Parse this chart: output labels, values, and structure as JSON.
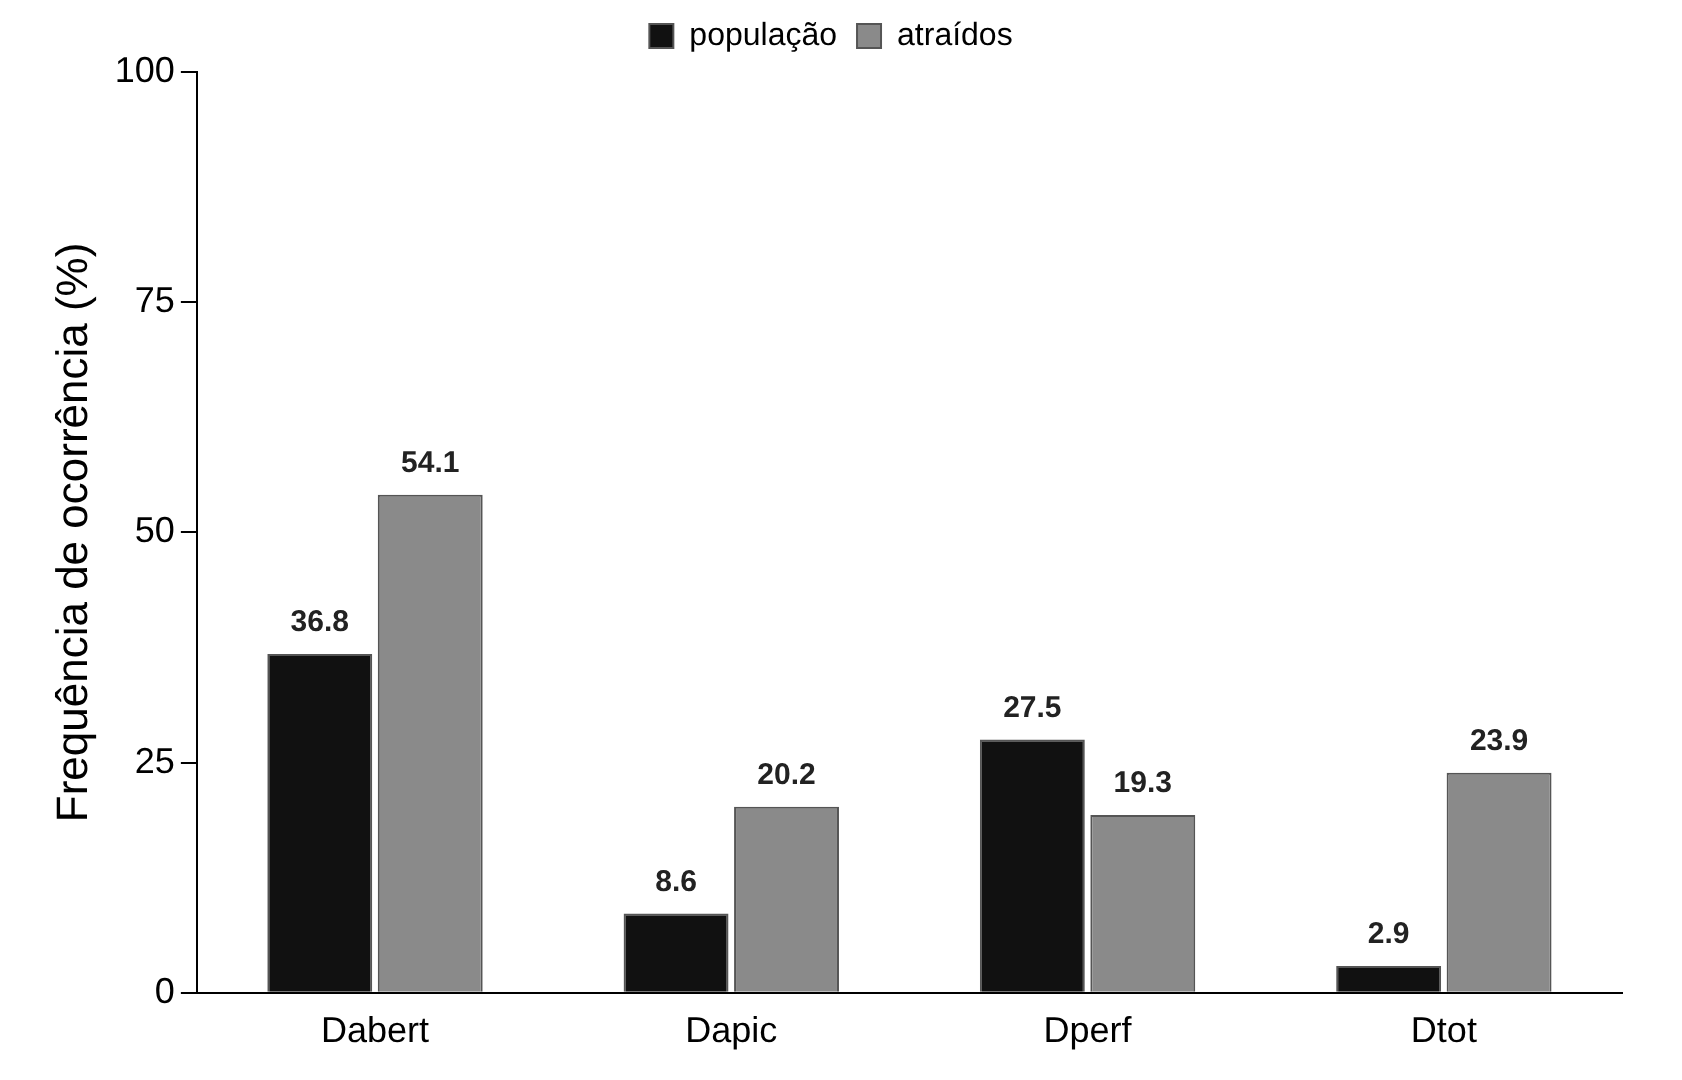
{
  "chart_data": {
    "type": "bar",
    "ylabel": "Frequência de ocorrência (%)",
    "categories": [
      "Dabert",
      "Dapic",
      "Dperf",
      "Dtot"
    ],
    "series": [
      {
        "name": "população",
        "color": "#111111",
        "values": [
          36.8,
          8.6,
          27.5,
          2.9
        ]
      },
      {
        "name": "atraídos",
        "color": "#8a8a8a",
        "values": [
          54.1,
          20.2,
          19.3,
          23.9
        ]
      }
    ],
    "ylim": [
      0,
      100
    ],
    "yticks": [
      0,
      25,
      50,
      75,
      100
    ],
    "grid": false,
    "legend": "top",
    "data_labels": true
  }
}
